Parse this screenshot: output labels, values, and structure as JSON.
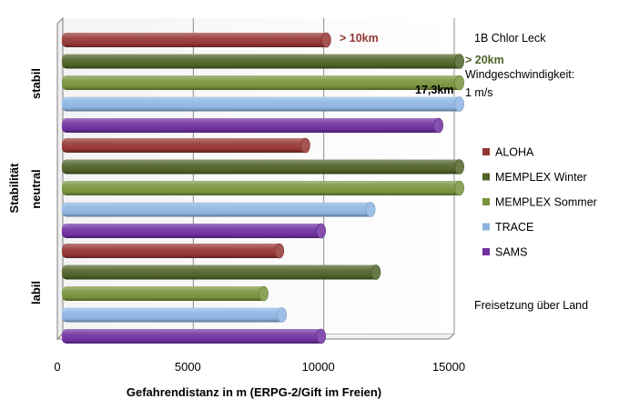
{
  "chart_data": {
    "type": "bar",
    "orientation": "horizontal",
    "style": "3d-cylinder",
    "categories": [
      "labil",
      "neutral",
      "stabil"
    ],
    "series": [
      {
        "name": "SAMS",
        "values": [
          10000,
          10000,
          14500
        ],
        "color": "#7030A0"
      },
      {
        "name": "TRACE",
        "values": [
          8500,
          11900,
          15300
        ],
        "color": "#8DB4E2"
      },
      {
        "name": "MEMPLEX Sommer",
        "values": [
          7800,
          15300,
          15300
        ],
        "color": "#77933C"
      },
      {
        "name": "MEMPLEX Winter",
        "values": [
          12100,
          15300,
          15300
        ],
        "color": "#4F6228"
      },
      {
        "name": "ALOHA",
        "values": [
          8400,
          9400,
          10200
        ],
        "color": "#943634"
      }
    ],
    "xlabel": "Gefahrendistanz in m (ERPG-2/Gift im Freien)",
    "ylabel": "Stabilität",
    "xlim": [
      0,
      15000
    ],
    "xticks": [
      "0",
      "5000",
      "10000",
      "15000"
    ],
    "grid": "vertical",
    "legend_position": "right",
    "annotations": {
      "aloha_stabil": "> 10km",
      "memplex_stabil": "> 20km",
      "trace_stabil": "17,3km"
    },
    "notes": {
      "title": "1B Chlor Leck",
      "wind_line1": "Windgeschwindigkeit:",
      "wind_line2": "1 m/s",
      "release": "Freisetzung über Land"
    }
  }
}
